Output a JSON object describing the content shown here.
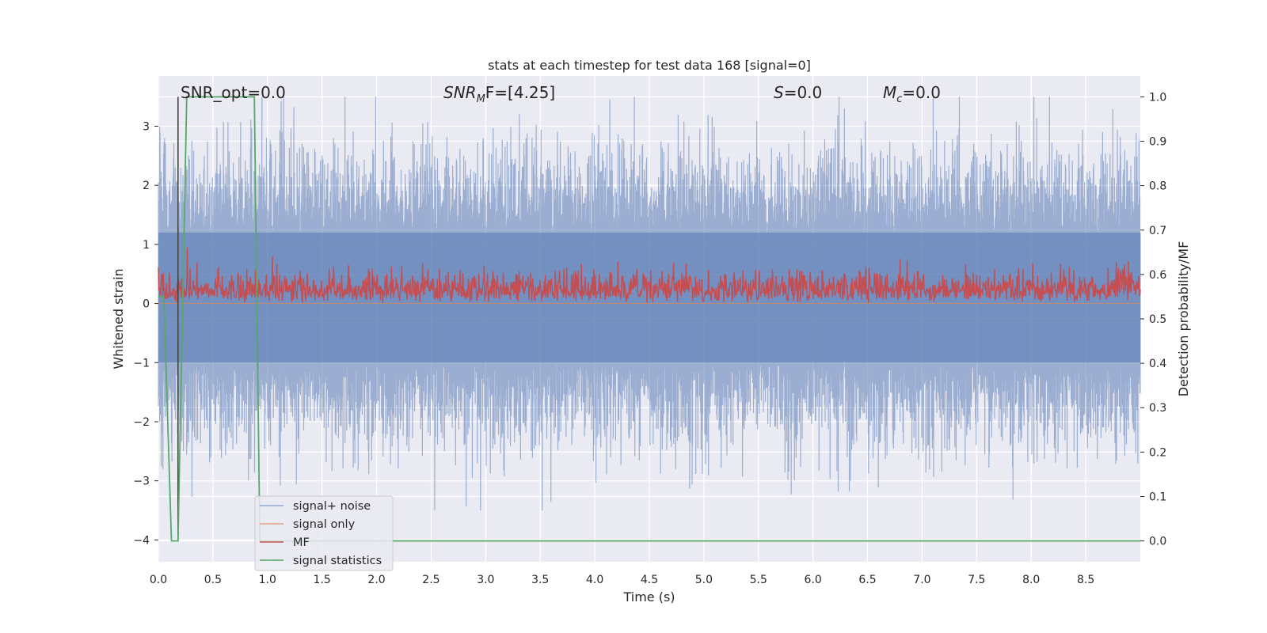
{
  "chart_data": {
    "type": "line",
    "title": "stats at each timestep for test data 168 [signal=0]",
    "xlabel": "Time (s)",
    "ylabel": "Whitened strain",
    "ylabel_right": "Detection probability/MF",
    "xlim": [
      0.0,
      9.0
    ],
    "ylim": [
      -4.37,
      3.85
    ],
    "ylim_right": [
      -0.047,
      1.047
    ],
    "x_ticks": [
      0.0,
      0.5,
      1.0,
      1.5,
      2.0,
      2.5,
      3.0,
      3.5,
      4.0,
      4.5,
      5.0,
      5.5,
      6.0,
      6.5,
      7.0,
      7.5,
      8.0,
      8.5
    ],
    "x_tick_labels": [
      "0.0",
      "0.5",
      "1.0",
      "1.5",
      "2.0",
      "2.5",
      "3.0",
      "3.5",
      "4.0",
      "4.5",
      "5.0",
      "5.5",
      "6.0",
      "6.5",
      "7.0",
      "7.5",
      "8.0",
      "8.5"
    ],
    "y_ticks": [
      3,
      2,
      1,
      0,
      -1,
      -2,
      -3,
      -4
    ],
    "y_tick_labels": [
      "3",
      "2",
      "1",
      "0",
      "−1",
      "−2",
      "−3",
      "−4"
    ],
    "y_right_ticks": [
      1.0,
      0.9,
      0.8,
      0.7,
      0.6,
      0.5,
      0.4,
      0.3,
      0.2,
      0.1,
      0.0
    ],
    "y_right_tick_labels": [
      "1.0",
      "0.9",
      "0.8",
      "0.7",
      "0.6",
      "0.5",
      "0.4",
      "0.3",
      "0.2",
      "0.1",
      "0.0"
    ],
    "grid": true,
    "legend_position": "lower-left",
    "colors": {
      "background": "#eaeaf2",
      "grid": "#ffffff",
      "signal_noise": "#4c72b0",
      "signal_only": "#dd8452",
      "mf": "#c44e52",
      "signal_statistics": "#55a868",
      "marker_line": "#444444"
    },
    "annotations": {
      "snr_opt": "SNR_opt=0.0",
      "snr_mf_symbol": "SNR",
      "snr_mf_sub": "M",
      "snr_mf_tail": "F=[4.25]",
      "s": "S",
      "s_value": "=0.0",
      "mc": "M",
      "mc_sub": "c",
      "mc_value": "=0.0"
    },
    "noise": {
      "description_values": "signal+noise whitened strain, roughly gaussian in [-3.5, 3.5] across 0-9 s",
      "band_low": -1.0,
      "band_high": 1.2,
      "peak_max": 3.5,
      "peak_min": -3.5
    },
    "mf": {
      "baseline": 0.0,
      "typical_high": 0.45,
      "peak_max": 0.95
    },
    "signal_statistics": {
      "x": [
        0.0,
        0.05,
        0.12,
        0.18,
        0.26,
        0.88,
        0.93,
        1.0,
        9.0
      ],
      "y": [
        0.55,
        0.55,
        0.0,
        0.0,
        1.0,
        1.0,
        0.0,
        0.0,
        0.0
      ]
    },
    "marker_line_x": 0.18,
    "series": [
      {
        "name": "signal+ noise",
        "key": "signal_noise"
      },
      {
        "name": "signal only",
        "key": "signal_only"
      },
      {
        "name": "MF",
        "key": "mf"
      },
      {
        "name": "signal statistics",
        "key": "signal_statistics"
      }
    ]
  }
}
